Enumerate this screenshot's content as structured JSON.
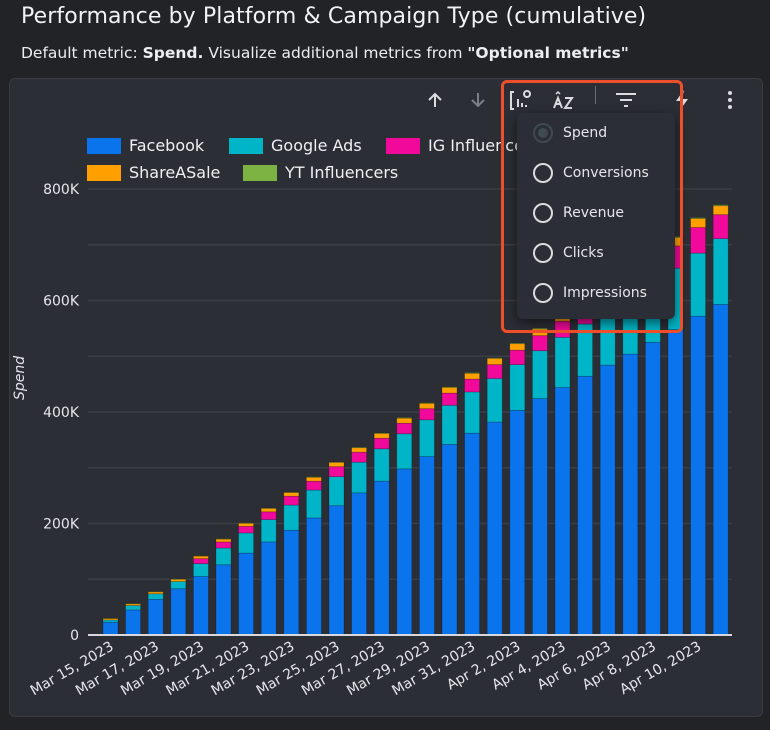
{
  "header": {
    "title": "Performance by Platform & Campaign Type (cumulative)",
    "subtitle_prefix": "Default metric: ",
    "subtitle_bold1": "Spend.",
    "subtitle_mid": " Visualize additional metrics from ",
    "subtitle_bold2": "\"Optional metrics\""
  },
  "toolbar": {
    "icons": [
      "sort-ascending-icon",
      "sort-descending-icon",
      "optional-metrics-icon",
      "sort-az-icon",
      "filter-icon",
      "quick-insights-icon",
      "more-options-icon"
    ]
  },
  "metrics_menu": {
    "options": [
      {
        "label": "Spend",
        "selected": true
      },
      {
        "label": "Conversions",
        "selected": false
      },
      {
        "label": "Revenue",
        "selected": false
      },
      {
        "label": "Clicks",
        "selected": false
      },
      {
        "label": "Impressions",
        "selected": false
      }
    ]
  },
  "colors": {
    "Facebook": "#0a74ed",
    "Google Ads": "#00b5c8",
    "IG Influencers": "#f0099a",
    "ShareASale": "#ffa000",
    "YT Influencers": "#7cb342",
    "highlight": "#ef4e2b"
  },
  "chart_data": {
    "type": "bar",
    "stacked": true,
    "title": "Performance by Platform & Campaign Type (cumulative)",
    "xlabel": "",
    "ylabel": "Spend",
    "ylim": [
      0,
      800000
    ],
    "yticks": [
      0,
      200000,
      400000,
      600000,
      800000
    ],
    "ytick_labels": [
      "0",
      "200K",
      "400K",
      "600K",
      "800K"
    ],
    "grid": true,
    "legend": "top-left",
    "legend_entries": [
      "Facebook",
      "Google Ads",
      "IG Influencers",
      "ShareASale",
      "YT Influencers"
    ],
    "categories": [
      "Mar 15, 2023",
      "Mar 16, 2023",
      "Mar 17, 2023",
      "Mar 18, 2023",
      "Mar 19, 2023",
      "Mar 20, 2023",
      "Mar 21, 2023",
      "Mar 22, 2023",
      "Mar 23, 2023",
      "Mar 24, 2023",
      "Mar 25, 2023",
      "Mar 26, 2023",
      "Mar 27, 2023",
      "Mar 28, 2023",
      "Mar 29, 2023",
      "Mar 30, 2023",
      "Mar 31, 2023",
      "Apr 1, 2023",
      "Apr 2, 2023",
      "Apr 3, 2023",
      "Apr 4, 2023",
      "Apr 5, 2023",
      "Apr 6, 2023",
      "Apr 7, 2023",
      "Apr 8, 2023",
      "Apr 9, 2023",
      "Apr 10, 2023",
      "Apr 11, 2023"
    ],
    "xtick_labels": [
      "Mar 15, 2023",
      "",
      "Mar 17, 2023",
      "",
      "Mar 19, 2023",
      "",
      "Mar 21, 2023",
      "",
      "Mar 23, 2023",
      "",
      "Mar 25, 2023",
      "",
      "Mar 27, 2023",
      "",
      "Mar 29, 2023",
      "",
      "Mar 31, 2023",
      "",
      "Apr 2, 2023",
      "",
      "Apr 4, 2023",
      "",
      "Apr 6, 2023",
      "",
      "Apr 8, 2023",
      "",
      "Apr 10, 2023",
      ""
    ],
    "series": [
      {
        "name": "Facebook",
        "values": [
          23000,
          45000,
          64000,
          83000,
          105000,
          126000,
          147000,
          167000,
          188000,
          210000,
          232000,
          255000,
          276000,
          298000,
          320000,
          342000,
          362000,
          382000,
          403000,
          424000,
          444000,
          464000,
          484000,
          504000,
          525000,
          548000,
          572000,
          593000
        ]
      },
      {
        "name": "Google Ads",
        "values": [
          4000,
          8000,
          10000,
          13000,
          23000,
          30000,
          36000,
          40000,
          45000,
          50000,
          52000,
          55000,
          58000,
          63000,
          66000,
          70000,
          74000,
          78000,
          82000,
          86000,
          90000,
          94000,
          99000,
          103000,
          106000,
          110000,
          113000,
          118000
        ]
      },
      {
        "name": "IG Influencers",
        "values": [
          0,
          0,
          0,
          0,
          9000,
          11000,
          12000,
          14000,
          16000,
          16000,
          18000,
          18000,
          19000,
          19000,
          20000,
          22000,
          23000,
          25000,
          26000,
          27000,
          29000,
          31000,
          33000,
          35000,
          37000,
          40000,
          46000,
          43000
        ]
      },
      {
        "name": "ShareASale",
        "values": [
          2500,
          3000,
          3500,
          4000,
          4500,
          5000,
          5500,
          6000,
          6500,
          7000,
          7500,
          8000,
          8500,
          9000,
          9500,
          10000,
          10500,
          11000,
          11500,
          12000,
          12500,
          13000,
          13500,
          14000,
          14500,
          15000,
          16000,
          16000
        ]
      },
      {
        "name": "YT Influencers",
        "values": [
          500,
          500,
          500,
          500,
          500,
          600,
          600,
          700,
          700,
          800,
          800,
          900,
          900,
          1000,
          1000,
          1100,
          1100,
          1200,
          1200,
          1300,
          1300,
          1400,
          1400,
          1500,
          1500,
          1600,
          1600,
          1700
        ]
      }
    ]
  }
}
